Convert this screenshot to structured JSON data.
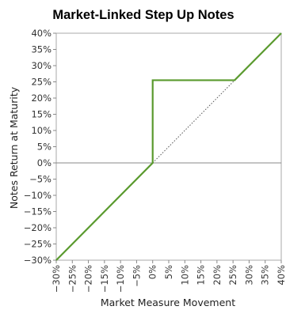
{
  "chart_data": {
    "type": "line",
    "title": "Market-Linked Step Up Notes",
    "xlabel": "Market Measure Movement",
    "ylabel": "Notes Return at Maturity",
    "xlim": [
      -30,
      40
    ],
    "ylim": [
      -30,
      40
    ],
    "x_ticks": [
      "−30%",
      "−25%",
      "−20%",
      "−15%",
      "−10%",
      "−5%",
      "0%",
      "5%",
      "10%",
      "15%",
      "20%",
      "25%",
      "30%",
      "35%",
      "40%"
    ],
    "y_ticks": [
      "−30%",
      "−25%",
      "−20%",
      "−15%",
      "−10%",
      "−5%",
      "0%",
      "5%",
      "10%",
      "15%",
      "20%",
      "25%",
      "30%",
      "35%",
      "40%"
    ],
    "x_tick_values": [
      -30,
      -25,
      -20,
      -15,
      -10,
      -5,
      0,
      5,
      10,
      15,
      20,
      25,
      30,
      35,
      40
    ],
    "y_tick_values": [
      -30,
      -25,
      -20,
      -15,
      -10,
      -5,
      0,
      5,
      10,
      15,
      20,
      25,
      30,
      35,
      40
    ],
    "grid": false,
    "legend": "none",
    "series": [
      {
        "style": "solid",
        "color": "#5a9a2e",
        "points": [
          [
            -30,
            -30
          ],
          [
            0,
            0
          ],
          [
            0,
            25.5
          ],
          [
            25.5,
            25.5
          ],
          [
            40,
            40
          ]
        ]
      },
      {
        "style": "dotted",
        "color": "#555555",
        "points": [
          [
            0,
            0
          ],
          [
            25.5,
            25.5
          ]
        ]
      }
    ],
    "zero_line_color": "#888888",
    "frame_color": "#aaaaaa"
  }
}
